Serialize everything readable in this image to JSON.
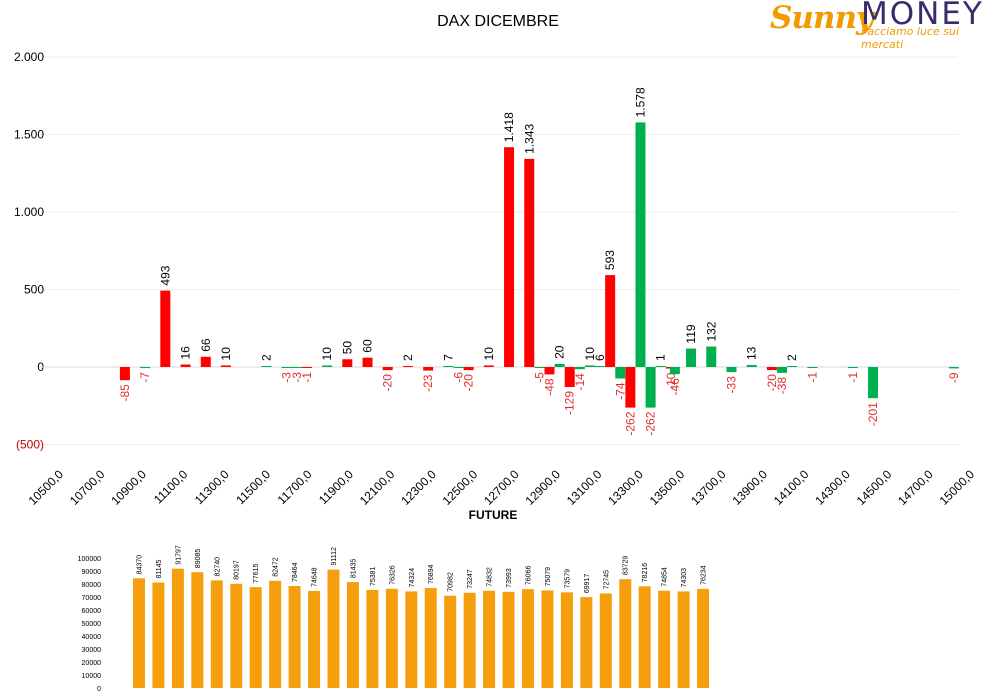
{
  "logo": {
    "brand_sunny": "Sunny",
    "brand_money": "MONEY",
    "tagline": "Facciamo luce sui mercati"
  },
  "colors": {
    "red": "#ff0000",
    "green": "#00b050",
    "orange": "#f59f0f",
    "negative_text": "#e03030",
    "text": "#000000"
  },
  "chart_data": [
    {
      "type": "bar",
      "title": "DAX DICEMBRE",
      "xlabel": "",
      "ylabel": "",
      "ylim": [
        -500,
        2000
      ],
      "y_ticks": [
        {
          "value": 2000,
          "label": "2.000"
        },
        {
          "value": 1500,
          "label": "1.500"
        },
        {
          "value": 1000,
          "label": "1.000"
        },
        {
          "value": 500,
          "label": "500"
        },
        {
          "value": 0,
          "label": "0"
        },
        {
          "value": -500,
          "label": "(500)"
        }
      ],
      "x_tick_labels": [
        "10500,0",
        "10700,0",
        "10900,0",
        "11100,0",
        "11300,0",
        "11500,0",
        "11700,0",
        "11900,0",
        "12100,0",
        "12300,0",
        "12500,0",
        "12700,0",
        "12900,0",
        "13100,0",
        "13300,0",
        "13500,0",
        "13700,0",
        "13900,0",
        "14100,0",
        "14300,0",
        "14500,0",
        "14700,0",
        "15000,0"
      ],
      "grid": true,
      "legend": "none",
      "series": [
        {
          "color": "red",
          "points": [
            {
              "x": 10900,
              "y": -85,
              "label": "-85"
            },
            {
              "x": 11100,
              "y": 493,
              "label": "493"
            },
            {
              "x": 11200,
              "y": 16,
              "label": "16"
            },
            {
              "x": 11300,
              "y": 66,
              "label": "66"
            },
            {
              "x": 11400,
              "y": 10,
              "label": "10"
            },
            {
              "x": 11800,
              "y": -1,
              "label": "-1"
            },
            {
              "x": 12000,
              "y": 50,
              "label": "50"
            },
            {
              "x": 12100,
              "y": 60,
              "label": "60"
            },
            {
              "x": 12200,
              "y": -20,
              "label": "-20"
            },
            {
              "x": 12300,
              "y": 2,
              "label": "2"
            },
            {
              "x": 12400,
              "y": -23,
              "label": "-23"
            },
            {
              "x": 12600,
              "y": -20,
              "label": "-20"
            },
            {
              "x": 12700,
              "y": 10,
              "label": "10"
            },
            {
              "x": 12800,
              "y": 1418,
              "label": "1.418"
            },
            {
              "x": 12900,
              "y": 1343,
              "label": "1.343"
            },
            {
              "x": 13000,
              "y": -48,
              "label": "-48"
            },
            {
              "x": 13100,
              "y": -129,
              "label": "-129"
            },
            {
              "x": 13300,
              "y": 593,
              "label": "593"
            },
            {
              "x": 13400,
              "y": -262,
              "label": "-262"
            },
            {
              "x": 13600,
              "y": -10,
              "label": "-10"
            },
            {
              "x": 14100,
              "y": -20,
              "label": "-20"
            }
          ]
        },
        {
          "color": "green",
          "points": [
            {
              "x": 11000,
              "y": -7,
              "label": "-7"
            },
            {
              "x": 11600,
              "y": 2,
              "label": "2"
            },
            {
              "x": 11700,
              "y": -3,
              "label": "-3"
            },
            {
              "x": 11750,
              "y": -3,
              "label": "-3"
            },
            {
              "x": 11900,
              "y": 10,
              "label": "10"
            },
            {
              "x": 12500,
              "y": 7,
              "label": "7"
            },
            {
              "x": 12550,
              "y": -6,
              "label": "-6"
            },
            {
              "x": 12950,
              "y": -5,
              "label": "-5"
            },
            {
              "x": 13050,
              "y": 20,
              "label": "20"
            },
            {
              "x": 13150,
              "y": -14,
              "label": "-14"
            },
            {
              "x": 13200,
              "y": 10,
              "label": "10"
            },
            {
              "x": 13250,
              "y": 6,
              "label": "6"
            },
            {
              "x": 13350,
              "y": -74,
              "label": "-74"
            },
            {
              "x": 13450,
              "y": 1578,
              "label": "1.578"
            },
            {
              "x": 13500,
              "y": -262,
              "label": "-262"
            },
            {
              "x": 13550,
              "y": 1,
              "label": "1"
            },
            {
              "x": 13620,
              "y": -46,
              "label": "-46"
            },
            {
              "x": 13700,
              "y": 119,
              "label": "119"
            },
            {
              "x": 13800,
              "y": 132,
              "label": "132"
            },
            {
              "x": 13900,
              "y": -33,
              "label": "-33"
            },
            {
              "x": 14000,
              "y": 13,
              "label": "13"
            },
            {
              "x": 14150,
              "y": -38,
              "label": "-38"
            },
            {
              "x": 14200,
              "y": 2,
              "label": "2"
            },
            {
              "x": 14300,
              "y": -1,
              "label": "-1"
            },
            {
              "x": 14500,
              "y": -1,
              "label": "-1"
            },
            {
              "x": 14600,
              "y": -201,
              "label": "-201"
            },
            {
              "x": 15000,
              "y": -9,
              "label": "-9"
            }
          ]
        }
      ]
    },
    {
      "type": "bar",
      "title": "FUTURE",
      "xlabel": "",
      "ylabel": "",
      "ylim": [
        0,
        100000
      ],
      "y_ticks": [
        0,
        10000,
        20000,
        30000,
        40000,
        50000,
        60000,
        70000,
        80000,
        90000,
        100000
      ],
      "grid": false,
      "legend": "none",
      "series": [
        {
          "color": "orange",
          "values": [
            84370,
            81145,
            91797,
            89085,
            82740,
            80197,
            77615,
            82472,
            78464,
            74648,
            91112,
            81435,
            75381,
            76326,
            74324,
            76894,
            70982,
            73247,
            74832,
            73993,
            76066,
            75079,
            73579,
            69917,
            72745,
            83729,
            78216,
            74854,
            74303,
            76234
          ]
        }
      ]
    }
  ]
}
